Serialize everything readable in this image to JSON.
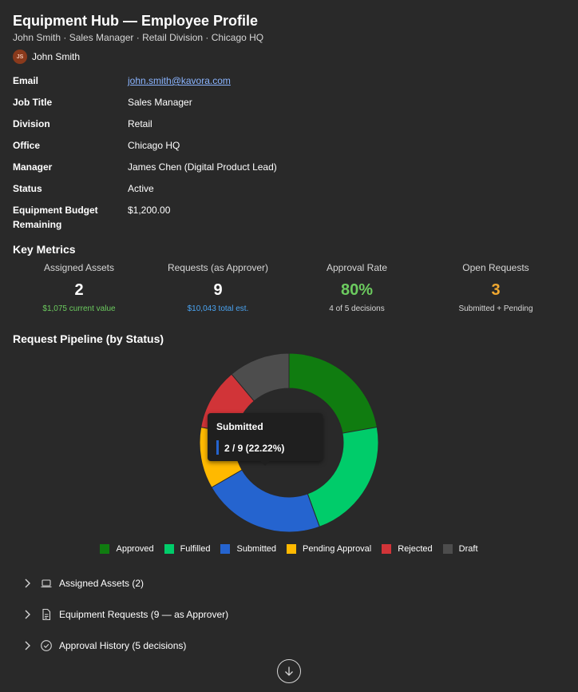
{
  "header": {
    "title": "Equipment Hub — Employee Profile",
    "subtitle": "John Smith · Sales Manager · Retail Division · Chicago HQ",
    "user": {
      "initials": "JS",
      "name": "John Smith"
    }
  },
  "profile": {
    "fields": [
      {
        "label": "Email",
        "value": "john.smith@kavora.com"
      },
      {
        "label": "Job Title",
        "value": "Sales Manager"
      },
      {
        "label": "Division",
        "value": "Retail"
      },
      {
        "label": "Office",
        "value": "Chicago HQ"
      },
      {
        "label": "Manager",
        "value": "James Chen (Digital Product Lead)"
      },
      {
        "label": "Status",
        "value": "Active"
      },
      {
        "label": "Equipment Budget Remaining",
        "value": "$1,200.00"
      }
    ]
  },
  "metrics": {
    "title": "Key Metrics",
    "items": [
      {
        "label": "Assigned Assets",
        "value": "2",
        "sub": "$1,075 current value",
        "value_color": "#ffffff",
        "sub_color": "#6ccb5f"
      },
      {
        "label": "Requests (as Approver)",
        "value": "9",
        "sub": "$10,043 total est.",
        "value_color": "#ffffff",
        "sub_color": "#4aa3f0"
      },
      {
        "label": "Approval Rate",
        "value": "80%",
        "sub": "4 of 5 decisions",
        "value_color": "#6ccb5f",
        "sub_color": "#d6d6d6"
      },
      {
        "label": "Open Requests",
        "value": "3",
        "sub": "Submitted + Pending",
        "value_color": "#f0a830",
        "sub_color": "#d6d6d6"
      }
    ]
  },
  "pipeline": {
    "title": "Request Pipeline (by Status)",
    "tooltip": {
      "title": "Submitted",
      "value": "2 / 9 (22.22%)"
    }
  },
  "chart_data": {
    "type": "pie",
    "donut": true,
    "title": "",
    "categories": [
      "Approved",
      "Fulfilled",
      "Submitted",
      "Pending Approval",
      "Rejected",
      "Draft"
    ],
    "values": [
      2,
      2,
      2,
      1,
      1,
      1
    ],
    "colors": [
      "#107c10",
      "#00cc6a",
      "#2564cf",
      "#ffb900",
      "#d13438",
      "#4d4d4d"
    ],
    "legend_position": "bottom"
  },
  "sections": [
    {
      "label": "Assigned Assets (2)",
      "icon": "laptop-icon"
    },
    {
      "label": "Equipment Requests (9 — as Approver)",
      "icon": "document-icon"
    },
    {
      "label": "Approval History (5 decisions)",
      "icon": "check-circle-icon"
    }
  ],
  "scroll": {
    "icon": "arrow-down-circle-icon"
  }
}
